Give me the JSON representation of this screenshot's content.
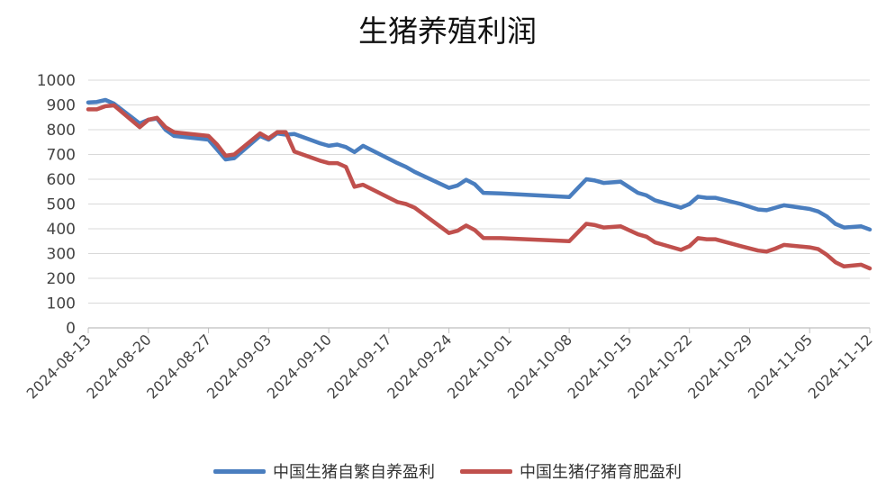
{
  "chart_data": {
    "type": "line",
    "title": "生猪养殖利润",
    "xlabel": "",
    "ylabel": "",
    "ylim": [
      0,
      1000
    ],
    "yticks": [
      0,
      100,
      200,
      300,
      400,
      500,
      600,
      700,
      800,
      900,
      1000
    ],
    "xticks": [
      "2024-08-13",
      "2024-08-20",
      "2024-08-27",
      "2024-09-03",
      "2024-09-10",
      "2024-09-17",
      "2024-09-24",
      "2024-10-01",
      "2024-10-08",
      "2024-10-15",
      "2024-10-22",
      "2024-10-29",
      "2024-11-05",
      "2024-11-12"
    ],
    "xrange": [
      "2024-08-13",
      "2024-11-12"
    ],
    "grid": true,
    "legend_position": "bottom",
    "series": [
      {
        "name": "中国生猪自繁自养盈利",
        "color": "#4a7ebf",
        "points": [
          [
            "2024-08-13",
            910
          ],
          [
            "2024-08-14",
            912
          ],
          [
            "2024-08-15",
            920
          ],
          [
            "2024-08-16",
            905
          ],
          [
            "2024-08-19",
            825
          ],
          [
            "2024-08-20",
            840
          ],
          [
            "2024-08-21",
            845
          ],
          [
            "2024-08-22",
            800
          ],
          [
            "2024-08-23",
            775
          ],
          [
            "2024-08-27",
            760
          ],
          [
            "2024-08-28",
            720
          ],
          [
            "2024-08-29",
            680
          ],
          [
            "2024-08-30",
            685
          ],
          [
            "2024-09-02",
            775
          ],
          [
            "2024-09-03",
            760
          ],
          [
            "2024-09-04",
            785
          ],
          [
            "2024-09-05",
            780
          ],
          [
            "2024-09-06",
            783
          ],
          [
            "2024-09-09",
            745
          ],
          [
            "2024-09-10",
            735
          ],
          [
            "2024-09-11",
            740
          ],
          [
            "2024-09-12",
            730
          ],
          [
            "2024-09-13",
            710
          ],
          [
            "2024-09-14",
            735
          ],
          [
            "2024-09-18",
            665
          ],
          [
            "2024-09-19",
            650
          ],
          [
            "2024-09-20",
            630
          ],
          [
            "2024-09-24",
            565
          ],
          [
            "2024-09-25",
            575
          ],
          [
            "2024-09-26",
            598
          ],
          [
            "2024-09-27",
            580
          ],
          [
            "2024-09-28",
            545
          ],
          [
            "2024-09-30",
            543
          ],
          [
            "2024-10-08",
            528
          ],
          [
            "2024-10-10",
            600
          ],
          [
            "2024-10-11",
            595
          ],
          [
            "2024-10-12",
            585
          ],
          [
            "2024-10-14",
            590
          ],
          [
            "2024-10-16",
            545
          ],
          [
            "2024-10-17",
            535
          ],
          [
            "2024-10-18",
            515
          ],
          [
            "2024-10-21",
            485
          ],
          [
            "2024-10-22",
            500
          ],
          [
            "2024-10-23",
            530
          ],
          [
            "2024-10-24",
            525
          ],
          [
            "2024-10-25",
            525
          ],
          [
            "2024-10-28",
            500
          ],
          [
            "2024-10-30",
            478
          ],
          [
            "2024-10-31",
            475
          ],
          [
            "2024-11-01",
            485
          ],
          [
            "2024-11-02",
            495
          ],
          [
            "2024-11-05",
            480
          ],
          [
            "2024-11-06",
            470
          ],
          [
            "2024-11-07",
            450
          ],
          [
            "2024-11-08",
            420
          ],
          [
            "2024-11-09",
            405
          ],
          [
            "2024-11-11",
            410
          ],
          [
            "2024-11-12",
            397
          ]
        ]
      },
      {
        "name": "中国生猪仔猪育肥盈利",
        "color": "#c0504d",
        "points": [
          [
            "2024-08-13",
            882
          ],
          [
            "2024-08-14",
            882
          ],
          [
            "2024-08-15",
            895
          ],
          [
            "2024-08-16",
            898
          ],
          [
            "2024-08-19",
            810
          ],
          [
            "2024-08-20",
            840
          ],
          [
            "2024-08-21",
            848
          ],
          [
            "2024-08-22",
            810
          ],
          [
            "2024-08-23",
            790
          ],
          [
            "2024-08-27",
            775
          ],
          [
            "2024-08-28",
            740
          ],
          [
            "2024-08-29",
            695
          ],
          [
            "2024-08-30",
            700
          ],
          [
            "2024-09-02",
            785
          ],
          [
            "2024-09-03",
            765
          ],
          [
            "2024-09-04",
            790
          ],
          [
            "2024-09-05",
            790
          ],
          [
            "2024-09-06",
            712
          ],
          [
            "2024-09-09",
            675
          ],
          [
            "2024-09-10",
            665
          ],
          [
            "2024-09-11",
            665
          ],
          [
            "2024-09-12",
            650
          ],
          [
            "2024-09-13",
            570
          ],
          [
            "2024-09-14",
            578
          ],
          [
            "2024-09-18",
            508
          ],
          [
            "2024-09-19",
            500
          ],
          [
            "2024-09-20",
            485
          ],
          [
            "2024-09-24",
            383
          ],
          [
            "2024-09-25",
            392
          ],
          [
            "2024-09-26",
            413
          ],
          [
            "2024-09-27",
            395
          ],
          [
            "2024-09-28",
            363
          ],
          [
            "2024-09-30",
            362
          ],
          [
            "2024-10-08",
            350
          ],
          [
            "2024-10-10",
            420
          ],
          [
            "2024-10-11",
            415
          ],
          [
            "2024-10-12",
            405
          ],
          [
            "2024-10-14",
            410
          ],
          [
            "2024-10-16",
            378
          ],
          [
            "2024-10-17",
            368
          ],
          [
            "2024-10-18",
            345
          ],
          [
            "2024-10-21",
            315
          ],
          [
            "2024-10-22",
            330
          ],
          [
            "2024-10-23",
            362
          ],
          [
            "2024-10-24",
            358
          ],
          [
            "2024-10-25",
            358
          ],
          [
            "2024-10-28",
            330
          ],
          [
            "2024-10-30",
            312
          ],
          [
            "2024-10-31",
            308
          ],
          [
            "2024-11-01",
            320
          ],
          [
            "2024-11-02",
            335
          ],
          [
            "2024-11-05",
            325
          ],
          [
            "2024-11-06",
            318
          ],
          [
            "2024-11-07",
            295
          ],
          [
            "2024-11-08",
            265
          ],
          [
            "2024-11-09",
            248
          ],
          [
            "2024-11-11",
            255
          ],
          [
            "2024-11-12",
            240
          ]
        ]
      }
    ]
  }
}
